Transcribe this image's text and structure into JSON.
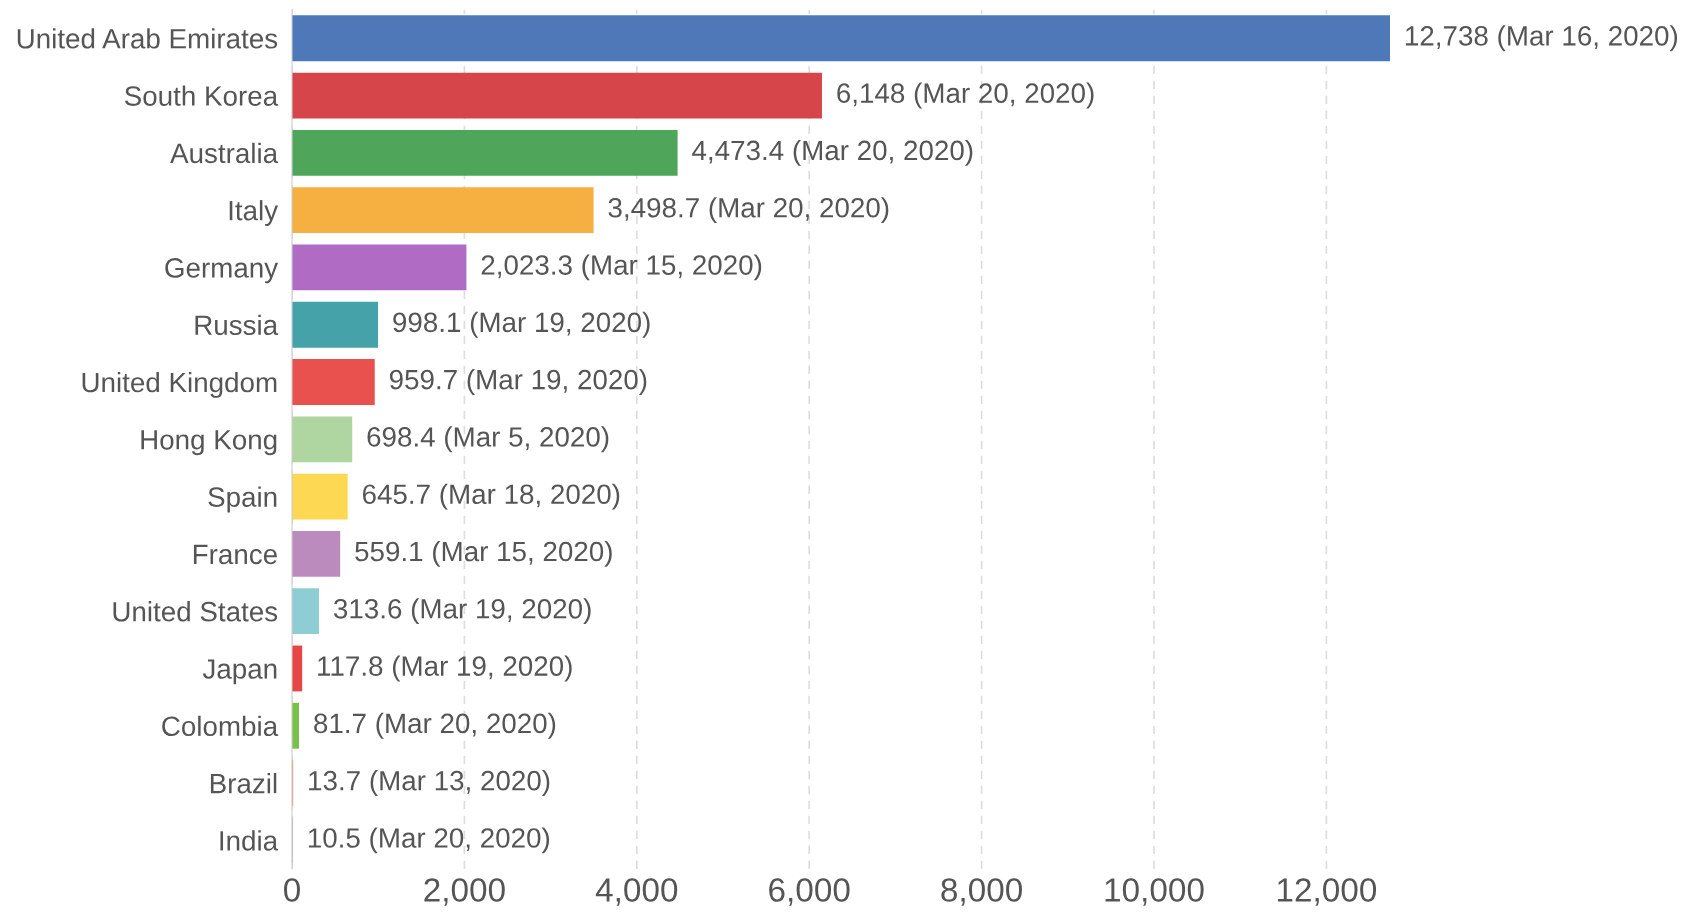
{
  "chart_data": {
    "type": "bar",
    "orientation": "horizontal",
    "categories": [
      "United Arab Emirates",
      "South Korea",
      "Australia",
      "Italy",
      "Germany",
      "Russia",
      "United Kingdom",
      "Hong Kong",
      "Spain",
      "France",
      "United States",
      "Japan",
      "Colombia",
      "Brazil",
      "India"
    ],
    "values": [
      12738,
      6148,
      4473.4,
      3498.7,
      2023.3,
      998.1,
      959.7,
      698.4,
      645.7,
      559.1,
      313.6,
      117.8,
      81.7,
      13.7,
      10.5
    ],
    "value_labels": [
      "12,738 (Mar 16, 2020)",
      "6,148 (Mar 20, 2020)",
      "4,473.4 (Mar 20, 2020)",
      "3,498.7 (Mar 20, 2020)",
      "2,023.3 (Mar 15, 2020)",
      "998.1 (Mar 19, 2020)",
      "959.7 (Mar 19, 2020)",
      "698.4 (Mar 5, 2020)",
      "645.7 (Mar 18, 2020)",
      "559.1 (Mar 15, 2020)",
      "313.6 (Mar 19, 2020)",
      "117.8 (Mar 19, 2020)",
      "81.7 (Mar 20, 2020)",
      "13.7 (Mar 13, 2020)",
      "10.5 (Mar 20, 2020)"
    ],
    "colors": [
      "#4f78b8",
      "#d5454a",
      "#4fa65a",
      "#f6b042",
      "#b06bc4",
      "#45a2a9",
      "#e8514d",
      "#afd6a0",
      "#fdd853",
      "#bb8bbd",
      "#8ecdd4",
      "#e84545",
      "#79c24a",
      "#e98c7f",
      "#c39fd0"
    ],
    "xlim": [
      0,
      12738
    ],
    "xticks": [
      {
        "value": 0,
        "label": "0"
      },
      {
        "value": 2000,
        "label": "2,000"
      },
      {
        "value": 4000,
        "label": "4,000"
      },
      {
        "value": 6000,
        "label": "6,000"
      },
      {
        "value": 8000,
        "label": "8,000"
      },
      {
        "value": 10000,
        "label": "10,000"
      },
      {
        "value": 12000,
        "label": "12,000"
      }
    ],
    "grid": "x"
  }
}
